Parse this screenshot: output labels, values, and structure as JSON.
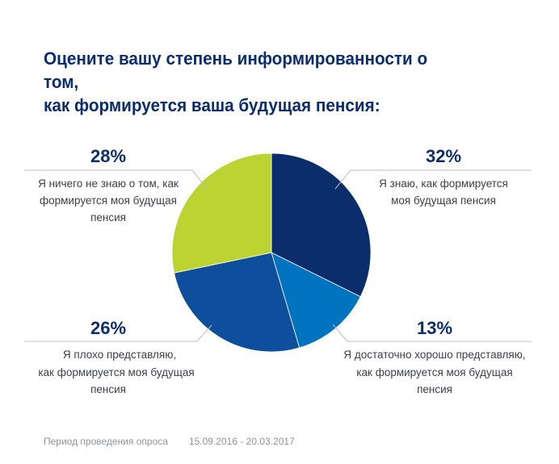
{
  "title_lines": [
    "Оцените вашу степень информированности о том,",
    "как формируется ваша будущая пенсия:"
  ],
  "footer": {
    "period_label": "Период проведения опроса",
    "period_dates": "15.09.2016 - 20.03.2017"
  },
  "chart_data": {
    "type": "pie",
    "slices": [
      {
        "value": 32,
        "label_text": "32%",
        "label_lines": [
          "Я знаю, как формируется",
          "моя будущая пенсия"
        ],
        "color": "#0c2d6b"
      },
      {
        "value": 13,
        "label_text": "13%",
        "label_lines": [
          "Я достаточно хорошо представляю,",
          "как формируется моя будущая",
          "пенсия"
        ],
        "color": "#0073bf"
      },
      {
        "value": 26,
        "label_text": "26%",
        "label_lines": [
          "Я плохо представляю,",
          "как формируется моя будущая",
          "пенсия"
        ],
        "color": "#0d4f9c"
      },
      {
        "value": 28,
        "label_text": "28%",
        "label_lines": [
          "Я ничего не знаю о том, как",
          "формируется моя будущая",
          "пенсия"
        ],
        "color": "#bcd332"
      }
    ]
  }
}
